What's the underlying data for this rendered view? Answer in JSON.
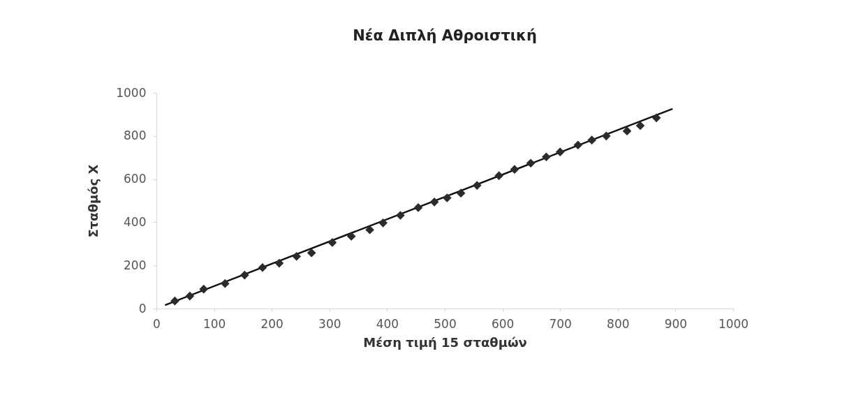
{
  "chart_data": {
    "type": "scatter",
    "title": "Νέα Διπλή Αθροιστική",
    "xlabel": "Μέση τιμή 15 σταθμών",
    "ylabel": "Σταθμός Χ",
    "xlim": [
      0,
      1000
    ],
    "xticks": [
      0,
      100,
      200,
      300,
      400,
      500,
      600,
      700,
      800,
      900,
      1000
    ],
    "ylim": [
      0,
      1000
    ],
    "yticks": [
      0,
      200,
      400,
      600,
      800,
      1000
    ],
    "grid": false,
    "marker": "diamond",
    "series": [
      {
        "type": "scatter",
        "color": "#2b2b2b",
        "x": [
          32,
          58,
          82,
          119,
          153,
          184,
          213,
          243,
          269,
          305,
          338,
          370,
          393,
          423,
          454,
          482,
          504,
          528,
          556,
          594,
          621,
          649,
          676,
          700,
          731,
          755,
          780,
          816,
          839,
          867
        ],
        "values": [
          35,
          58,
          90,
          116,
          155,
          190,
          210,
          242,
          258,
          306,
          335,
          365,
          397,
          432,
          468,
          494,
          513,
          535,
          571,
          616,
          645,
          674,
          703,
          726,
          758,
          781,
          800,
          823,
          848,
          884
        ]
      },
      {
        "type": "line",
        "color": "#111111",
        "line_style": "solid",
        "marker": "none",
        "x": [
          15,
          895
        ],
        "values": [
          16,
          926
        ]
      }
    ]
  }
}
